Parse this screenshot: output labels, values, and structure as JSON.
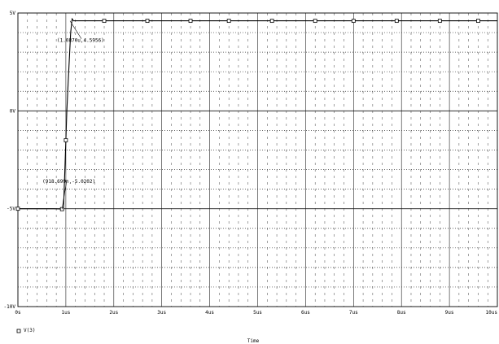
{
  "chart_data": {
    "type": "line",
    "xlabel": "Time",
    "ylabel": "",
    "xlim": [
      0,
      10
    ],
    "ylim": [
      -10,
      5
    ],
    "x_unit": "us",
    "grid": true,
    "x_ticks": [
      {
        "value": 0,
        "label": "0s"
      },
      {
        "value": 1,
        "label": "1us"
      },
      {
        "value": 2,
        "label": "2us"
      },
      {
        "value": 3,
        "label": "3us"
      },
      {
        "value": 4,
        "label": "4us"
      },
      {
        "value": 5,
        "label": "5us"
      },
      {
        "value": 6,
        "label": "6us"
      },
      {
        "value": 7,
        "label": "7us"
      },
      {
        "value": 8,
        "label": "8us"
      },
      {
        "value": 9,
        "label": "9us"
      },
      {
        "value": 10,
        "label": "10us"
      }
    ],
    "y_ticks": [
      {
        "value": 5,
        "label": "5V"
      },
      {
        "value": 0,
        "label": "0V"
      },
      {
        "value": -5,
        "label": "-5V"
      },
      {
        "value": -10,
        "label": "-10V"
      }
    ],
    "series": [
      {
        "name": "V(3)",
        "marker": "square",
        "x": [
          0,
          0.25,
          0.5,
          0.75,
          0.9,
          0.92,
          0.95,
          0.98,
          1.0,
          1.02,
          1.05,
          1.08,
          1.1,
          1.13,
          1.16,
          1.2,
          1.3,
          1.5,
          1.8,
          2.7,
          3.6,
          4.4,
          5.3,
          6.2,
          7.0,
          7.9,
          8.8,
          9.6,
          10
        ],
        "y": [
          -5.0,
          -5.0,
          -5.0,
          -5.0,
          -5.01,
          -5.02,
          -5.05,
          -3.0,
          -1.5,
          0.0,
          1.5,
          3.0,
          4.0,
          4.7,
          4.6,
          4.6,
          4.6,
          4.6,
          4.6,
          4.6,
          4.6,
          4.6,
          4.6,
          4.6,
          4.6,
          4.6,
          4.6,
          4.6,
          4.6
        ],
        "marker_x": [
          0,
          0.92,
          1.0,
          1.8,
          2.7,
          3.6,
          4.4,
          5.3,
          6.2,
          7.0,
          7.9,
          8.8,
          9.6
        ],
        "marker_y": [
          -5.0,
          -5.02,
          -1.5,
          4.6,
          4.6,
          4.6,
          4.6,
          4.6,
          4.6,
          4.6,
          4.6,
          4.6,
          4.6
        ]
      }
    ],
    "annotations": [
      {
        "text": "(1.0870u,4.5956)",
        "x": 1.087,
        "y": 4.5956
      },
      {
        "text": "(918.699n,-5.0202)",
        "x": 0.918699,
        "y": -5.0202
      }
    ]
  }
}
